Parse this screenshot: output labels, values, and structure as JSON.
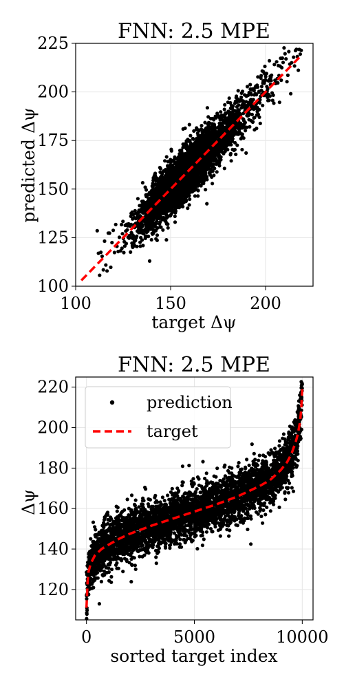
{
  "chart_data": [
    {
      "type": "scatter",
      "title": "FNN: 2.5 MPE",
      "xlabel": "target Δψ",
      "ylabel": "predicted Δψ",
      "xlim": [
        100,
        225
      ],
      "ylim": [
        100,
        225
      ],
      "xticks": [
        100,
        150,
        200
      ],
      "yticks": [
        100,
        125,
        150,
        175,
        200,
        225
      ],
      "grid": true,
      "series": [
        {
          "marker": "dot",
          "color": "#000000",
          "n_points": 10000,
          "target_range": [
            110,
            219
          ],
          "error_std": 6.2
        },
        {
          "line": "dashed",
          "color": "#ff0000",
          "x": [
            103,
            219
          ],
          "y": [
            103,
            219
          ]
        }
      ]
    },
    {
      "type": "scatter",
      "title": "FNN: 2.5 MPE",
      "xlabel": "sorted target index",
      "ylabel": "Δψ",
      "xlim": [
        -500,
        10500
      ],
      "ylim": [
        105,
        225
      ],
      "xticks": [
        0,
        5000,
        10000
      ],
      "yticks": [
        120,
        140,
        160,
        180,
        200,
        220
      ],
      "grid": true,
      "legend": "top-left",
      "series": [
        {
          "name": "prediction",
          "marker": "dot",
          "color": "#000000",
          "n_points": 10000
        },
        {
          "name": "target",
          "line": "dashed",
          "color": "#ff0000",
          "x": [
            0,
            50,
            100,
            200,
            400,
            700,
            1000,
            1500,
            2000,
            3000,
            4000,
            5000,
            6000,
            7000,
            8000,
            8500,
            9000,
            9300,
            9500,
            9700,
            9800,
            9900,
            9950,
            10000
          ],
          "y": [
            111,
            124,
            129,
            133,
            137,
            140,
            142,
            145,
            147.5,
            151.5,
            155,
            158.5,
            162,
            166,
            171,
            174,
            179,
            183,
            187,
            193,
            197,
            203,
            209,
            219
          ]
        }
      ]
    }
  ]
}
